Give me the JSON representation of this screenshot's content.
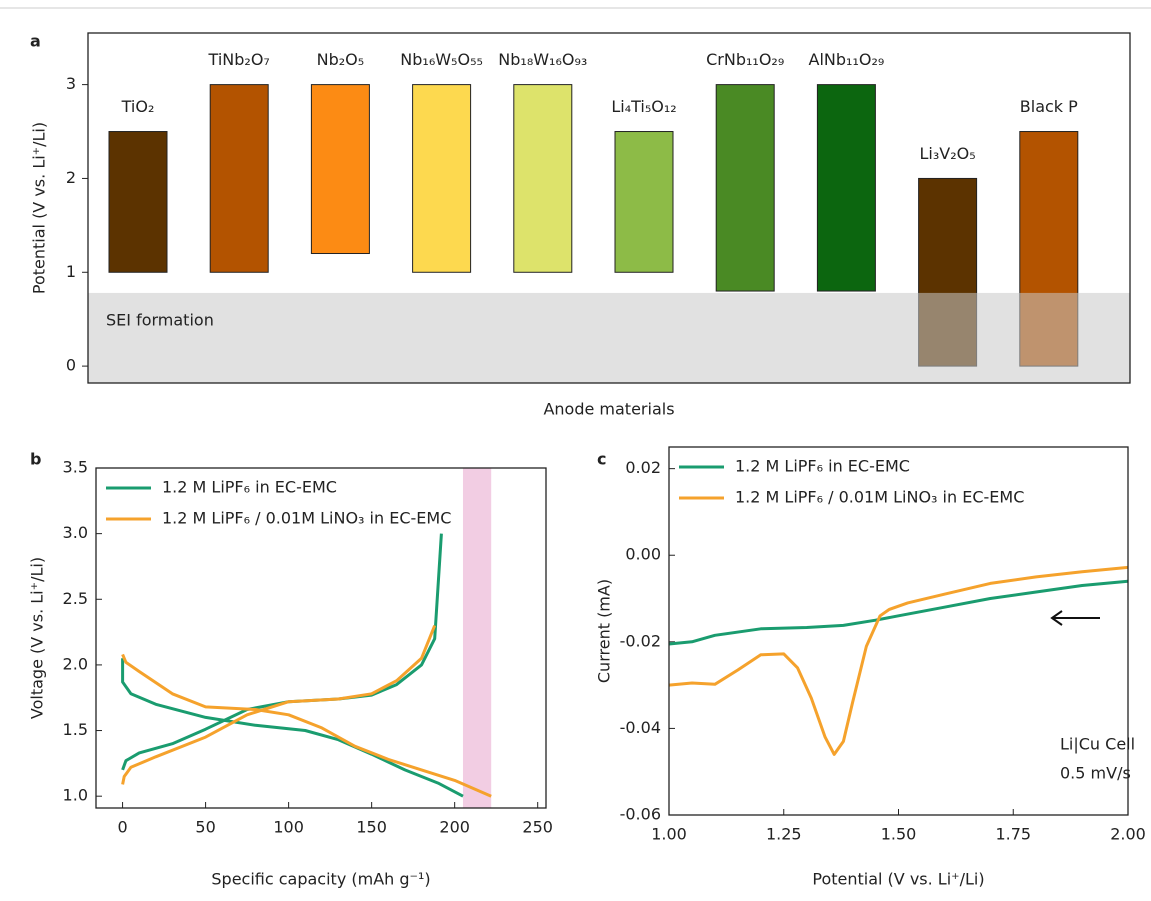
{
  "chart_data": [
    {
      "type": "floating_bar",
      "panel_label": "a",
      "ylabel": "Potential (V vs. Li⁺/Li)",
      "xlabel": "Anode materials",
      "categories": [
        "TiO₂",
        "TiNb₂O₇",
        "Nb₂O₅",
        "Nb₁₆W₅O₅₅",
        "Nb₁₈W₁₆O₉₃",
        "Li₄Ti₅O₁₂",
        "CrNb₁₁O₂₉",
        "AlNb₁₁O₂₉",
        "Li₃V₂O₅",
        "Black P"
      ],
      "low": [
        1,
        1,
        1.2,
        1,
        1,
        1,
        0.8,
        0.8,
        0,
        0
      ],
      "high": [
        2.5,
        3,
        3,
        3,
        3,
        2.5,
        3,
        3,
        2,
        2.5
      ],
      "colors": [
        "#5c3300",
        "#b35300",
        "#fc8b14",
        "#fdd94f",
        "#dde36b",
        "#8dbb47",
        "#4a8a24",
        "#0c660f",
        "#5c3300",
        "#b35300"
      ],
      "ylim": [
        -0.18,
        3.55
      ],
      "yticks": [
        0,
        1,
        2,
        3
      ],
      "shaded_region": {
        "label": "SEI formation",
        "y": [
          -0.18,
          0.78
        ],
        "color": "#c8c8c8"
      }
    },
    {
      "type": "line",
      "panel_label": "b",
      "xlabel": "Specific capacity (mAh g⁻¹)",
      "ylabel": "Voltage (V vs. Li⁺/Li)",
      "xlim": [
        -16,
        255
      ],
      "xticks": [
        0,
        50,
        100,
        150,
        200,
        250
      ],
      "ylim": [
        0.91,
        3.5
      ],
      "yticks": [
        {
          "value": 1,
          "label": "1.0"
        },
        1.5,
        {
          "value": 2,
          "label": "2.0"
        },
        2.5,
        {
          "value": 3,
          "label": "3.0"
        },
        3.5
      ],
      "shaded_region": {
        "x": [
          205,
          222
        ],
        "color": "#f2cde3"
      },
      "series": [
        {
          "name": "1.2 M LiPF₆ in EC-EMC",
          "color": "#1a9c6f",
          "x": [
            0,
            0,
            5,
            20,
            50,
            80,
            110,
            130,
            150,
            170,
            190,
            205,
            null,
            0,
            2,
            10,
            30,
            50,
            75,
            100,
            130,
            150,
            165,
            180,
            188,
            192
          ],
          "values": [
            2.05,
            1.87,
            1.78,
            1.7,
            1.6,
            1.54,
            1.5,
            1.43,
            1.32,
            1.2,
            1.1,
            1.0,
            null,
            1.2,
            1.27,
            1.33,
            1.4,
            1.51,
            1.66,
            1.72,
            1.74,
            1.77,
            1.85,
            2.0,
            2.2,
            3.0
          ]
        },
        {
          "name": "1.2 M LiPF₆ / 0.01M LiNO₃ in EC-EMC",
          "color": "#f5a22c",
          "x": [
            0,
            2,
            10,
            30,
            50,
            80,
            100,
            120,
            140,
            160,
            180,
            200,
            222,
            null,
            0,
            1,
            5,
            20,
            50,
            75,
            100,
            130,
            150,
            165,
            180,
            188
          ],
          "values": [
            2.08,
            2.02,
            1.95,
            1.78,
            1.68,
            1.66,
            1.62,
            1.52,
            1.38,
            1.28,
            1.2,
            1.12,
            1.0,
            null,
            1.09,
            1.15,
            1.22,
            1.3,
            1.45,
            1.62,
            1.72,
            1.74,
            1.78,
            1.88,
            2.05,
            2.3
          ]
        }
      ]
    },
    {
      "type": "line",
      "panel_label": "c",
      "xlabel": "Potential (V vs. Li⁺/Li)",
      "ylabel": "Current (mA)",
      "xlim": [
        1,
        2
      ],
      "xticks": [
        {
          "value": 1,
          "label": "1.00"
        },
        1.25,
        {
          "value": 1.5,
          "label": "1.50"
        },
        1.75,
        {
          "value": 2,
          "label": "2.00"
        }
      ],
      "ylim": [
        -0.06,
        0.025
      ],
      "yticks": [
        0.02,
        {
          "value": 0,
          "label": "0.00"
        },
        -0.02,
        -0.04,
        -0.06
      ],
      "annotations": [
        "Li|Cu Cell",
        "0.5 mV/s"
      ],
      "series": [
        {
          "name": "1.2 M LiPF₆ in EC-EMC",
          "color": "#1a9c6f",
          "x": [
            1.0,
            1.05,
            1.1,
            1.2,
            1.3,
            1.38,
            1.45,
            1.5,
            1.6,
            1.7,
            1.8,
            1.9,
            2.0
          ],
          "values": [
            -0.0205,
            -0.02,
            -0.0185,
            -0.017,
            -0.0167,
            -0.0162,
            -0.015,
            -0.014,
            -0.012,
            -0.01,
            -0.0085,
            -0.007,
            -0.006
          ]
        },
        {
          "name": "1.2 M LiPF₆ / 0.01M LiNO₃ in EC-EMC",
          "color": "#f5a22c",
          "x": [
            1.0,
            1.05,
            1.1,
            1.15,
            1.2,
            1.25,
            1.28,
            1.31,
            1.34,
            1.36,
            1.38,
            1.4,
            1.43,
            1.46,
            1.48,
            1.52,
            1.6,
            1.7,
            1.8,
            1.9,
            2.0
          ],
          "values": [
            -0.03,
            -0.0295,
            -0.0298,
            -0.0265,
            -0.023,
            -0.0228,
            -0.026,
            -0.033,
            -0.042,
            -0.046,
            -0.043,
            -0.034,
            -0.021,
            -0.014,
            -0.0125,
            -0.011,
            -0.009,
            -0.0065,
            -0.005,
            -0.0038,
            -0.0028
          ]
        }
      ]
    }
  ]
}
